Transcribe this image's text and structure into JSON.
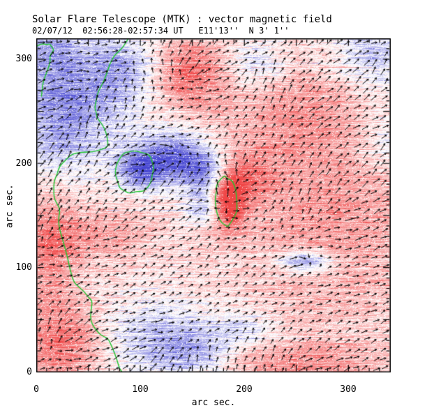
{
  "header": {
    "title": "Solar Flare Telescope (MTK) : vector magnetic field",
    "subtitle": "02/07/12  02:56:28-02:57:34 UT   E11'13''  N 3' 1''"
  },
  "chart_data": {
    "type": "heatmap",
    "title": "Solar Flare Telescope (MTK) : vector magnetic field",
    "subtitle": "02/07/12  02:56:28-02:57:34 UT   E11'13''  N 3' 1''",
    "xlabel": "arc sec.",
    "ylabel": "arc sec.",
    "xlim": [
      0,
      340
    ],
    "ylim": [
      0,
      320
    ],
    "xtick_labels": [
      "0",
      "100",
      "200",
      "300"
    ],
    "ytick_labels": [
      "0",
      "100",
      "200",
      "300"
    ],
    "xtick_values": [
      0,
      100,
      200,
      300
    ],
    "ytick_values": [
      0,
      100,
      200,
      300
    ],
    "major_tick_step": 50,
    "minor_tick_step": 10,
    "grid": false,
    "legend": "none",
    "colors": {
      "positive_polarity": "#f04646",
      "negative_polarity": "#4646d2",
      "contour": "#1fc42f",
      "vector_arrow": "#000000",
      "frame": "#000000",
      "background": "#ffffff"
    },
    "field_description": "Line-of-sight magnetogram: red = positive polarity, blue = negative polarity, black segments = transverse vector field, green = contours",
    "background_bias": 0.18,
    "field_blobs": [
      [
        45,
        270,
        45,
        40,
        -0.55
      ],
      [
        8,
        310,
        25,
        20,
        -0.45
      ],
      [
        22,
        230,
        27,
        37,
        -0.45
      ],
      [
        89,
        293,
        23,
        23,
        -0.45
      ],
      [
        210,
        293,
        20,
        17,
        -0.45
      ],
      [
        326,
        303,
        30,
        22,
        -0.55
      ],
      [
        334,
        220,
        20,
        20,
        -0.35
      ],
      [
        135,
        205,
        25,
        17,
        -1.05
      ],
      [
        99,
        193,
        15,
        13,
        -0.85
      ],
      [
        166,
        189,
        17,
        13,
        -0.7
      ],
      [
        164,
        159,
        15,
        12,
        -0.7
      ],
      [
        119,
        30,
        40,
        28,
        -0.5
      ],
      [
        150,
        18,
        25,
        15,
        -0.45
      ],
      [
        258,
        106,
        20,
        8,
        -0.95
      ],
      [
        200,
        41,
        23,
        13,
        -0.4
      ],
      [
        184,
        164,
        12,
        20,
        1.25
      ],
      [
        200,
        189,
        20,
        17,
        0.5
      ],
      [
        145,
        286,
        28,
        25,
        0.75
      ],
      [
        280,
        149,
        64,
        77,
        0.45
      ],
      [
        24,
        27,
        27,
        30,
        0.7
      ],
      [
        12,
        126,
        20,
        37,
        0.6
      ],
      [
        66,
        133,
        34,
        20,
        0.4
      ],
      [
        247,
        250,
        40,
        30,
        0.35
      ],
      [
        247,
        5,
        54,
        17,
        0.45
      ]
    ],
    "noise": {
      "seed": 1337,
      "streak": 0.9,
      "pixel": 0.22,
      "salt": 0.07,
      "row_artifact_prob": 0.022
    },
    "arrows": {
      "spacing_px": 13.3,
      "base_len": 4,
      "len_scale": 11,
      "max_len": 15,
      "bias_mag": 0.42,
      "bias_angle_deg": 38,
      "blob_weight": 0.5,
      "angle_noise": 0.5
    },
    "contours": [
      {
        "name": "inversion-line-left",
        "closed": false,
        "points": [
          [
            89,
            321
          ],
          [
            80,
            308
          ],
          [
            72,
            298
          ],
          [
            69,
            290
          ],
          [
            59,
            268
          ],
          [
            56,
            253
          ],
          [
            58,
            244
          ],
          [
            67,
            230
          ],
          [
            69,
            216
          ],
          [
            54,
            211
          ],
          [
            34,
            209
          ],
          [
            22,
            197
          ],
          [
            17,
            183
          ],
          [
            17,
            167
          ],
          [
            23,
            156
          ],
          [
            22,
            138
          ],
          [
            30,
            110
          ],
          [
            36,
            86
          ],
          [
            46,
            77
          ],
          [
            54,
            68
          ],
          [
            52,
            50
          ],
          [
            60,
            37
          ],
          [
            69,
            32
          ],
          [
            74,
            21
          ],
          [
            80,
            3
          ],
          [
            83,
            -2
          ]
        ]
      },
      {
        "name": "contour-top-left",
        "closed": false,
        "points": [
          [
            -2,
            311
          ],
          [
            7,
            315
          ],
          [
            13,
            315
          ],
          [
            17,
            309
          ],
          [
            13,
            303
          ],
          [
            12,
            293
          ],
          [
            7,
            280
          ],
          [
            5,
            264
          ]
        ]
      },
      {
        "name": "contour-loop-center",
        "closed": true,
        "points": [
          [
            95,
            212
          ],
          [
            109,
            208
          ],
          [
            113,
            196
          ],
          [
            110,
            181
          ],
          [
            103,
            173
          ],
          [
            89,
            171
          ],
          [
            80,
            176
          ],
          [
            76,
            188
          ],
          [
            78,
            201
          ],
          [
            84,
            210
          ]
        ]
      },
      {
        "name": "contour-loop-flare",
        "closed": true,
        "points": [
          [
            181,
            188
          ],
          [
            188,
            184
          ],
          [
            192,
            173
          ],
          [
            193,
            159
          ],
          [
            190,
            148
          ],
          [
            184,
            139
          ],
          [
            178,
            143
          ],
          [
            173,
            155
          ],
          [
            172,
            168
          ],
          [
            173,
            179
          ]
        ]
      }
    ]
  }
}
